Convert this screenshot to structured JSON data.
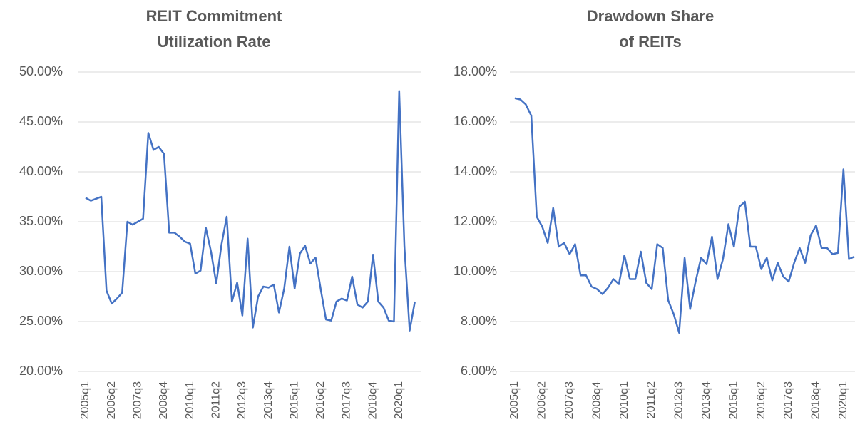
{
  "chart_data": [
    {
      "type": "line",
      "title": [
        "REIT Commitment",
        "Utilization Rate"
      ],
      "categories": [
        "2005q1",
        null,
        null,
        null,
        null,
        "2006q2",
        null,
        null,
        null,
        null,
        "2007q3",
        null,
        null,
        null,
        null,
        "2008q4",
        null,
        null,
        null,
        null,
        "2010q1",
        null,
        null,
        null,
        null,
        "2011q2",
        null,
        null,
        null,
        null,
        "2012q3",
        null,
        null,
        null,
        null,
        "2013q4",
        null,
        null,
        null,
        null,
        "2015q1",
        null,
        null,
        null,
        null,
        "2016q2",
        null,
        null,
        null,
        null,
        "2017q3",
        null,
        null,
        null,
        null,
        "2018q4",
        null,
        null,
        null,
        null,
        "2020q1",
        null,
        null,
        null
      ],
      "values": [
        37.4,
        37.1,
        37.3,
        37.5,
        28.1,
        26.8,
        27.3,
        27.9,
        35.0,
        34.7,
        35.0,
        35.3,
        43.9,
        42.2,
        42.5,
        41.8,
        33.9,
        33.9,
        33.5,
        33.0,
        32.8,
        29.8,
        30.1,
        34.4,
        32.0,
        28.8,
        32.7,
        35.5,
        27.0,
        28.9,
        25.6,
        33.3,
        24.4,
        27.5,
        28.5,
        28.4,
        28.7,
        25.9,
        28.3,
        32.5,
        28.3,
        31.8,
        32.6,
        30.8,
        31.4,
        28.2,
        25.2,
        25.1,
        27.0,
        27.3,
        27.1,
        29.5,
        26.7,
        26.4,
        27.0,
        31.7,
        27.0,
        26.4,
        25.1,
        25.0,
        48.1,
        32.5,
        24.1,
        27.0
      ],
      "color": "#4472c4",
      "ylim": [
        20,
        50
      ],
      "yticks": [
        {
          "value": 20,
          "label": "20.00%"
        },
        {
          "value": 25,
          "label": "25.00%"
        },
        {
          "value": 30,
          "label": "30.00%"
        },
        {
          "value": 35,
          "label": "35.00%"
        },
        {
          "value": 40,
          "label": "40.00%"
        },
        {
          "value": 45,
          "label": "45.00%"
        },
        {
          "value": 50,
          "label": "50.00%"
        }
      ],
      "grid": true
    },
    {
      "type": "line",
      "title": [
        "Drawdown Share",
        "of REITs"
      ],
      "categories": [
        "2005q1",
        null,
        null,
        null,
        null,
        "2006q2",
        null,
        null,
        null,
        null,
        "2007q3",
        null,
        null,
        null,
        null,
        "2008q4",
        null,
        null,
        null,
        null,
        "2010q1",
        null,
        null,
        null,
        null,
        "2011q2",
        null,
        null,
        null,
        null,
        "2012q3",
        null,
        null,
        null,
        null,
        "2013q4",
        null,
        null,
        null,
        null,
        "2015q1",
        null,
        null,
        null,
        null,
        "2016q2",
        null,
        null,
        null,
        null,
        "2017q3",
        null,
        null,
        null,
        null,
        "2018q4",
        null,
        null,
        null,
        null,
        "2020q1",
        null,
        null
      ],
      "values": [
        16.95,
        16.9,
        16.7,
        16.25,
        12.2,
        11.8,
        11.15,
        12.55,
        11.0,
        11.15,
        10.7,
        11.1,
        9.85,
        9.85,
        9.4,
        9.3,
        9.1,
        9.35,
        9.7,
        9.5,
        10.65,
        9.7,
        9.7,
        10.8,
        9.55,
        9.3,
        11.1,
        10.95,
        8.85,
        8.3,
        7.55,
        10.55,
        8.5,
        9.6,
        10.55,
        10.3,
        11.4,
        9.7,
        10.5,
        11.9,
        11.0,
        12.6,
        12.8,
        11.0,
        11.0,
        10.1,
        10.55,
        9.65,
        10.35,
        9.8,
        9.6,
        10.35,
        10.95,
        10.35,
        11.45,
        11.85,
        10.95,
        10.95,
        10.7,
        10.75,
        14.1,
        10.5,
        10.6
      ],
      "color": "#4472c4",
      "ylim": [
        6,
        18
      ],
      "yticks": [
        {
          "value": 6,
          "label": "6.00%"
        },
        {
          "value": 8,
          "label": "8.00%"
        },
        {
          "value": 10,
          "label": "10.00%"
        },
        {
          "value": 12,
          "label": "12.00%"
        },
        {
          "value": 14,
          "label": "14.00%"
        },
        {
          "value": 16,
          "label": "16.00%"
        },
        {
          "value": 18,
          "label": "18.00%"
        }
      ],
      "grid": true
    }
  ]
}
